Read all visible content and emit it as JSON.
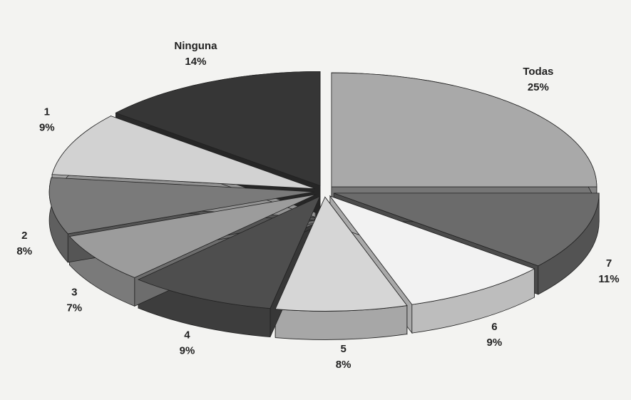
{
  "chart_data": {
    "type": "pie",
    "categories": [
      "Todas",
      "7",
      "6",
      "5",
      "4",
      "3",
      "2",
      "1",
      "Ninguna"
    ],
    "values": [
      25,
      11,
      9,
      8,
      9,
      7,
      8,
      9,
      14
    ],
    "value_labels": [
      "25%",
      "11%",
      "9%",
      "8%",
      "9%",
      "7%",
      "8%",
      "9%",
      "14%"
    ],
    "colors": [
      "#a9a9a9",
      "#6b6b6b",
      "#f2f2f2",
      "#d6d6d6",
      "#4e4e4e",
      "#9c9c9c",
      "#7a7a7a",
      "#d2d2d2",
      "#363636"
    ]
  }
}
